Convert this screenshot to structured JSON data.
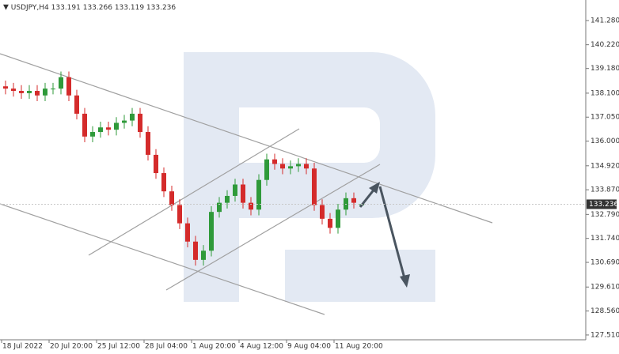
{
  "chart_data": {
    "type": "candlestick",
    "symbol": "USDJPY,H4",
    "categories": [
      "18 Jul 2022",
      null,
      null,
      null,
      null,
      null,
      "20 Jul 20:00",
      null,
      null,
      null,
      null,
      null,
      "25 Jul 12:00",
      null,
      null,
      null,
      null,
      null,
      "28 Jul 04:00",
      null,
      null,
      null,
      null,
      null,
      "1 Aug 20:00",
      null,
      null,
      null,
      null,
      null,
      "4 Aug 12:00",
      null,
      null,
      null,
      null,
      null,
      "9 Aug 04:00",
      null,
      null,
      null,
      null,
      null,
      "11 Aug 20:00",
      null,
      null,
      null
    ],
    "open": [
      138.4,
      138.3,
      138.2,
      138.1,
      138.2,
      138.0,
      138.3,
      138.3,
      138.8,
      138.0,
      137.2,
      136.2,
      136.4,
      136.6,
      136.5,
      136.8,
      136.9,
      137.2,
      136.4,
      135.4,
      134.6,
      133.8,
      133.2,
      132.4,
      131.6,
      130.8,
      131.2,
      132.9,
      133.3,
      133.6,
      134.1,
      133.3,
      133.0,
      134.3,
      135.2,
      135.0,
      134.8,
      134.9,
      135.0,
      134.8,
      133.2,
      132.6,
      132.2,
      133.0,
      133.5,
      133.191
    ],
    "high": [
      138.65,
      138.55,
      138.45,
      138.45,
      138.45,
      138.55,
      138.55,
      139.05,
      139.05,
      138.25,
      137.45,
      136.65,
      136.85,
      136.85,
      137.05,
      137.15,
      137.45,
      137.45,
      136.65,
      135.65,
      134.85,
      134.05,
      133.45,
      132.65,
      131.85,
      131.45,
      133.15,
      133.55,
      133.85,
      134.35,
      134.35,
      133.55,
      134.55,
      135.45,
      135.45,
      135.25,
      135.15,
      135.25,
      135.25,
      135.05,
      133.45,
      132.85,
      133.25,
      133.75,
      133.75,
      133.266
    ],
    "low": [
      138.05,
      137.95,
      137.85,
      137.85,
      137.75,
      137.75,
      138.05,
      138.05,
      137.75,
      136.95,
      135.95,
      135.95,
      136.15,
      136.25,
      136.25,
      136.55,
      136.65,
      136.15,
      135.15,
      134.35,
      133.55,
      132.95,
      132.15,
      131.35,
      130.55,
      130.55,
      130.95,
      132.65,
      133.05,
      133.35,
      133.05,
      132.75,
      132.75,
      134.05,
      134.75,
      134.55,
      134.55,
      134.65,
      134.55,
      132.95,
      132.35,
      131.95,
      131.95,
      132.75,
      133.05,
      133.119
    ],
    "close": [
      138.3,
      138.2,
      138.1,
      138.2,
      138.0,
      138.3,
      138.3,
      138.8,
      138.0,
      137.2,
      136.2,
      136.4,
      136.6,
      136.5,
      136.8,
      136.9,
      137.2,
      136.4,
      135.4,
      134.6,
      133.8,
      133.2,
      132.4,
      131.6,
      130.8,
      131.2,
      132.9,
      133.3,
      133.6,
      134.1,
      133.3,
      133.0,
      134.3,
      135.2,
      135.0,
      134.8,
      134.9,
      135.0,
      134.8,
      133.2,
      132.6,
      132.2,
      133.0,
      133.5,
      133.3,
      133.236
    ],
    "up_color": "#2f9a3a",
    "down_color": "#d42b2b",
    "ylim": [
      127.3,
      142.18
    ],
    "yticks": [
      {
        "value": 141.28,
        "label": "141.280"
      },
      {
        "value": 140.22,
        "label": "140.220"
      },
      {
        "value": 139.18,
        "label": "139.180"
      },
      {
        "value": 138.1,
        "label": "138.100"
      },
      {
        "value": 137.05,
        "label": "137.050"
      },
      {
        "value": 136.0,
        "label": "136.000"
      },
      {
        "value": 134.92,
        "label": "134.920"
      },
      {
        "value": 133.87,
        "label": "133.870"
      },
      {
        "value": 132.79,
        "label": "132.790"
      },
      {
        "value": 131.74,
        "label": "131.740"
      },
      {
        "value": 130.69,
        "label": "130.690"
      },
      {
        "value": 129.61,
        "label": "129.610"
      },
      {
        "value": 128.56,
        "label": "128.560"
      },
      {
        "value": 127.51,
        "label": "127.510"
      }
    ]
  }
}
